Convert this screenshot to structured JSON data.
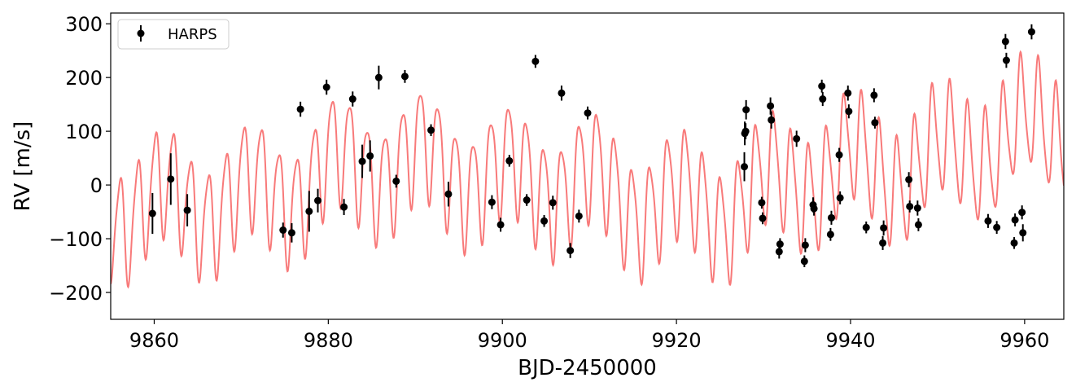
{
  "chart_data": {
    "type": "scatter",
    "xlabel": "BJD-2450000",
    "ylabel": "RV [m/s]",
    "xlim": [
      9855,
      9964.5
    ],
    "ylim": [
      -250,
      320
    ],
    "x_ticks": [
      9860,
      9880,
      9900,
      9920,
      9940,
      9960
    ],
    "x_tick_labels": [
      "9860",
      "9880",
      "9900",
      "9920",
      "9940",
      "9960"
    ],
    "y_ticks": [
      -200,
      -100,
      0,
      100,
      200,
      300
    ],
    "y_tick_labels": [
      "−200",
      "−100",
      "0",
      "100",
      "200",
      "300"
    ],
    "grid": false,
    "legend_position": "top-left",
    "series": [
      {
        "name": "HARPS",
        "marker": "circle",
        "color": "#000000",
        "points": [
          {
            "x": 9859.8,
            "y": -53,
            "err": 38
          },
          {
            "x": 9861.9,
            "y": 11,
            "err": 48
          },
          {
            "x": 9863.8,
            "y": -47,
            "err": 30
          },
          {
            "x": 9874.8,
            "y": -84,
            "err": 14
          },
          {
            "x": 9875.8,
            "y": -89,
            "err": 18
          },
          {
            "x": 9876.8,
            "y": 141,
            "err": 14
          },
          {
            "x": 9877.8,
            "y": -49,
            "err": 38
          },
          {
            "x": 9878.8,
            "y": -29,
            "err": 22
          },
          {
            "x": 9879.8,
            "y": 182,
            "err": 14
          },
          {
            "x": 9881.8,
            "y": -41,
            "err": 15
          },
          {
            "x": 9882.8,
            "y": 160,
            "err": 14
          },
          {
            "x": 9883.9,
            "y": 44,
            "err": 31
          },
          {
            "x": 9884.8,
            "y": 54,
            "err": 29
          },
          {
            "x": 9885.8,
            "y": 200,
            "err": 22
          },
          {
            "x": 9887.8,
            "y": 7,
            "err": 12
          },
          {
            "x": 9888.8,
            "y": 202,
            "err": 12
          },
          {
            "x": 9891.8,
            "y": 102,
            "err": 11
          },
          {
            "x": 9893.8,
            "y": -17,
            "err": 23
          },
          {
            "x": 9898.8,
            "y": -32,
            "err": 13
          },
          {
            "x": 9899.8,
            "y": -74,
            "err": 13
          },
          {
            "x": 9900.8,
            "y": 45,
            "err": 11
          },
          {
            "x": 9902.8,
            "y": -28,
            "err": 11
          },
          {
            "x": 9903.8,
            "y": 230,
            "err": 12
          },
          {
            "x": 9904.8,
            "y": -67,
            "err": 11
          },
          {
            "x": 9905.8,
            "y": -33,
            "err": 13
          },
          {
            "x": 9906.8,
            "y": 171,
            "err": 14
          },
          {
            "x": 9907.8,
            "y": -122,
            "err": 14
          },
          {
            "x": 9908.8,
            "y": -58,
            "err": 12
          },
          {
            "x": 9909.8,
            "y": 134,
            "err": 12
          },
          {
            "x": 9927.8,
            "y": 34,
            "err": 27
          },
          {
            "x": 9927.85,
            "y": 96,
            "err": 22
          },
          {
            "x": 9927.95,
            "y": 100,
            "err": 15
          },
          {
            "x": 9928.0,
            "y": 140,
            "err": 18
          },
          {
            "x": 9929.8,
            "y": -33,
            "err": 11
          },
          {
            "x": 9929.9,
            "y": -62,
            "err": 11
          },
          {
            "x": 9930.8,
            "y": 147,
            "err": 16
          },
          {
            "x": 9930.9,
            "y": 121,
            "err": 16
          },
          {
            "x": 9931.8,
            "y": -124,
            "err": 13
          },
          {
            "x": 9931.9,
            "y": -110,
            "err": 11
          },
          {
            "x": 9933.8,
            "y": 86,
            "err": 15
          },
          {
            "x": 9934.7,
            "y": -142,
            "err": 11
          },
          {
            "x": 9934.8,
            "y": -112,
            "err": 13
          },
          {
            "x": 9935.7,
            "y": -37,
            "err": 14
          },
          {
            "x": 9935.8,
            "y": -44,
            "err": 13
          },
          {
            "x": 9936.7,
            "y": 184,
            "err": 12
          },
          {
            "x": 9936.8,
            "y": 160,
            "err": 13
          },
          {
            "x": 9937.7,
            "y": -92,
            "err": 12
          },
          {
            "x": 9937.8,
            "y": -61,
            "err": 13
          },
          {
            "x": 9938.7,
            "y": 56,
            "err": 13
          },
          {
            "x": 9938.8,
            "y": -24,
            "err": 12
          },
          {
            "x": 9939.7,
            "y": 171,
            "err": 14
          },
          {
            "x": 9939.8,
            "y": 137,
            "err": 13
          },
          {
            "x": 9941.8,
            "y": -79,
            "err": 11
          },
          {
            "x": 9942.7,
            "y": 167,
            "err": 13
          },
          {
            "x": 9942.8,
            "y": 116,
            "err": 11
          },
          {
            "x": 9943.7,
            "y": -108,
            "err": 13
          },
          {
            "x": 9943.8,
            "y": -80,
            "err": 14
          },
          {
            "x": 9946.7,
            "y": 10,
            "err": 14
          },
          {
            "x": 9946.8,
            "y": -40,
            "err": 11
          },
          {
            "x": 9947.7,
            "y": -43,
            "err": 14
          },
          {
            "x": 9947.8,
            "y": -74,
            "err": 12
          },
          {
            "x": 9955.8,
            "y": -67,
            "err": 13
          },
          {
            "x": 9956.8,
            "y": -79,
            "err": 12
          },
          {
            "x": 9957.8,
            "y": 267,
            "err": 14
          },
          {
            "x": 9957.9,
            "y": 232,
            "err": 14
          },
          {
            "x": 9958.8,
            "y": -108,
            "err": 11
          },
          {
            "x": 9958.9,
            "y": -65,
            "err": 12
          },
          {
            "x": 9959.7,
            "y": -51,
            "err": 13
          },
          {
            "x": 9959.8,
            "y": -89,
            "err": 16
          },
          {
            "x": 9960.8,
            "y": 285,
            "err": 14
          }
        ]
      },
      {
        "name": "",
        "type": "line",
        "color": "#f87a7a",
        "model": {
          "base_offset": 0,
          "base_trend": [
            [
              9855,
              -40
            ],
            [
              9860,
              -35
            ],
            [
              9865,
              -30
            ],
            [
              9870,
              -25
            ],
            [
              9875,
              -5
            ],
            [
              9880,
              25
            ],
            [
              9885,
              45
            ],
            [
              9890,
              40
            ],
            [
              9895,
              35
            ],
            [
              9900,
              10
            ],
            [
              9905,
              15
            ],
            [
              9910,
              0
            ],
            [
              9915,
              -25
            ],
            [
              9920,
              -35
            ],
            [
              9925,
              -40
            ],
            [
              9930,
              -10
            ],
            [
              9935,
              20
            ],
            [
              9940,
              35
            ],
            [
              9945,
              30
            ],
            [
              9950,
              45
            ],
            [
              9955,
              80
            ],
            [
              9960,
              95
            ],
            [
              9964.5,
              110
            ]
          ],
          "components": [
            {
              "period": 2.03,
              "amplitude": 100,
              "phase": 0.3
            },
            {
              "period": 9.9,
              "amplitude": 45,
              "phase": 1.1
            },
            {
              "period": 1.02,
              "amplitude": 18,
              "phase": 0.7
            }
          ]
        }
      }
    ]
  }
}
